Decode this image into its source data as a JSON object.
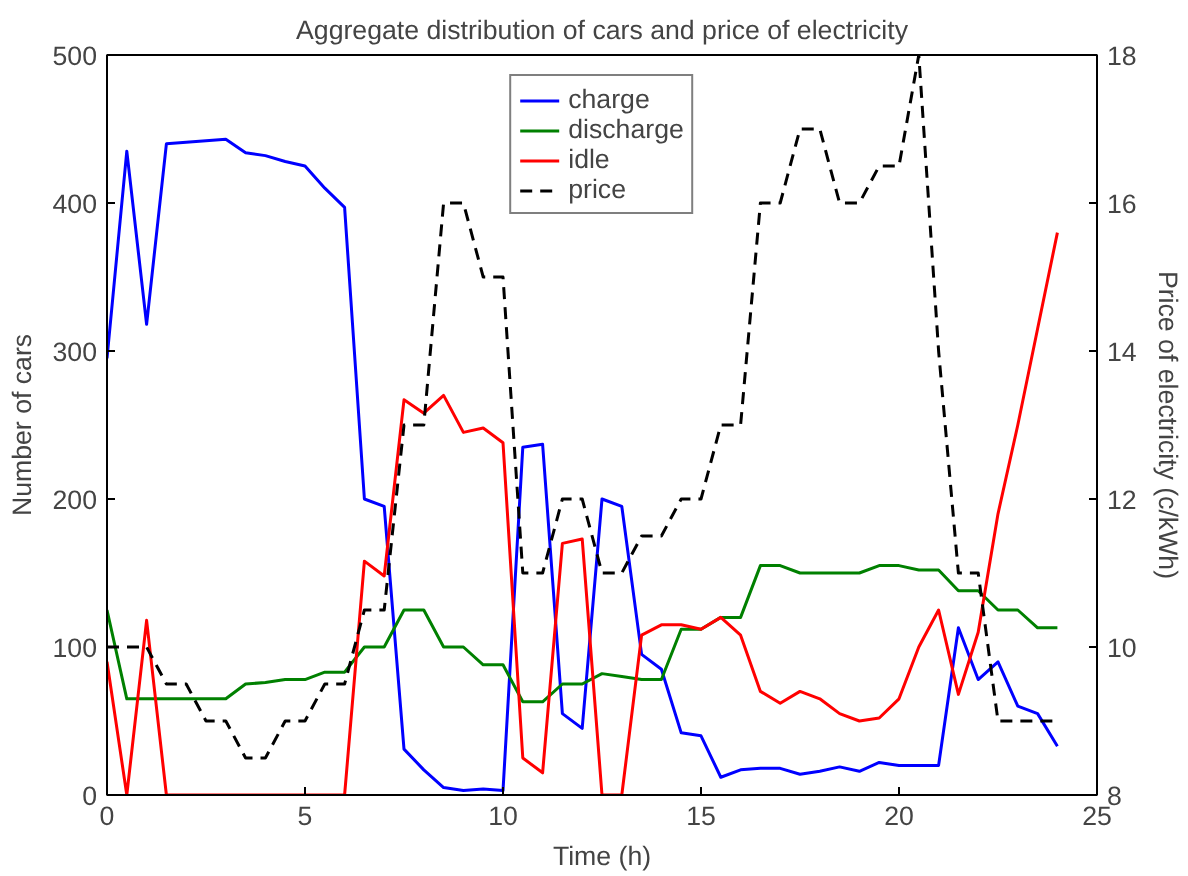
{
  "chart_data": {
    "type": "line",
    "title": "Aggregate distribution of cars and price of electricity",
    "xlabel": "Time (h)",
    "ylabel": "Number of cars",
    "y2label": "Price of electricity (c/kWh)",
    "x": [
      0,
      0.5,
      1,
      1.5,
      2,
      2.5,
      3,
      3.5,
      4,
      4.5,
      5,
      5.5,
      6,
      6.5,
      7,
      7.5,
      8,
      8.5,
      9,
      9.5,
      10,
      10.5,
      11,
      11.5,
      12,
      12.5,
      13,
      13.5,
      14,
      14.5,
      15,
      15.5,
      16,
      16.5,
      17,
      17.5,
      18,
      18.5,
      19,
      19.5,
      20,
      20.5,
      21,
      21.5,
      22,
      22.5,
      23,
      23.5,
      24
    ],
    "series": [
      {
        "name": "charge",
        "color": "#0000ff",
        "line_style": "solid",
        "values": [
          295,
          435,
          318,
          440,
          441,
          442,
          443,
          434,
          432,
          428,
          425,
          410,
          397,
          200,
          195,
          31,
          17,
          5,
          3,
          4,
          3,
          235,
          237,
          55,
          45,
          200,
          195,
          95,
          85,
          42,
          40,
          12,
          17,
          18,
          18,
          14,
          16,
          19,
          16,
          22,
          20,
          20,
          20,
          113,
          78,
          90,
          60,
          55,
          33
        ]
      },
      {
        "name": "discharge",
        "color": "#008000",
        "line_style": "solid",
        "values": [
          125,
          65,
          65,
          65,
          65,
          65,
          65,
          75,
          76,
          78,
          78,
          83,
          83,
          100,
          100,
          125,
          125,
          100,
          100,
          88,
          88,
          63,
          63,
          75,
          75,
          82,
          80,
          78,
          78,
          112,
          112,
          120,
          120,
          155,
          155,
          150,
          150,
          150,
          150,
          155,
          155,
          152,
          152,
          138,
          138,
          125,
          125,
          113,
          113
        ]
      },
      {
        "name": "idle",
        "color": "#ff0000",
        "line_style": "solid",
        "values": [
          90,
          0,
          118,
          0,
          0,
          0,
          0,
          0,
          0,
          0,
          0,
          0,
          0,
          158,
          148,
          267,
          258,
          270,
          245,
          248,
          238,
          25,
          15,
          170,
          173,
          0,
          0,
          108,
          115,
          115,
          112,
          120,
          108,
          70,
          62,
          70,
          65,
          55,
          50,
          52,
          65,
          100,
          125,
          68,
          110,
          190,
          250,
          315,
          380
        ]
      },
      {
        "name": "price",
        "color": "#000000",
        "line_style": "dashed",
        "axis": "y2",
        "values": [
          10,
          10,
          10,
          9.5,
          9.5,
          9,
          9,
          8.5,
          8.5,
          9,
          9,
          9.5,
          9.5,
          10.5,
          10.5,
          13,
          13,
          16,
          16,
          15,
          15,
          11,
          11,
          12,
          12,
          11,
          11,
          11.5,
          11.5,
          12,
          12,
          13,
          13,
          16,
          16,
          17,
          17,
          16,
          16,
          16.5,
          16.5,
          18,
          14,
          11,
          11,
          9,
          9,
          9,
          9
        ]
      }
    ],
    "xlim": [
      0,
      25
    ],
    "xticks": [
      0,
      5,
      10,
      15,
      20,
      25
    ],
    "ylim": [
      0,
      500
    ],
    "yticks": [
      0,
      100,
      200,
      300,
      400,
      500
    ],
    "y2lim": [
      8,
      18
    ],
    "y2ticks": [
      8,
      10,
      12,
      14,
      16,
      18
    ],
    "legend": "top",
    "grid": false
  }
}
